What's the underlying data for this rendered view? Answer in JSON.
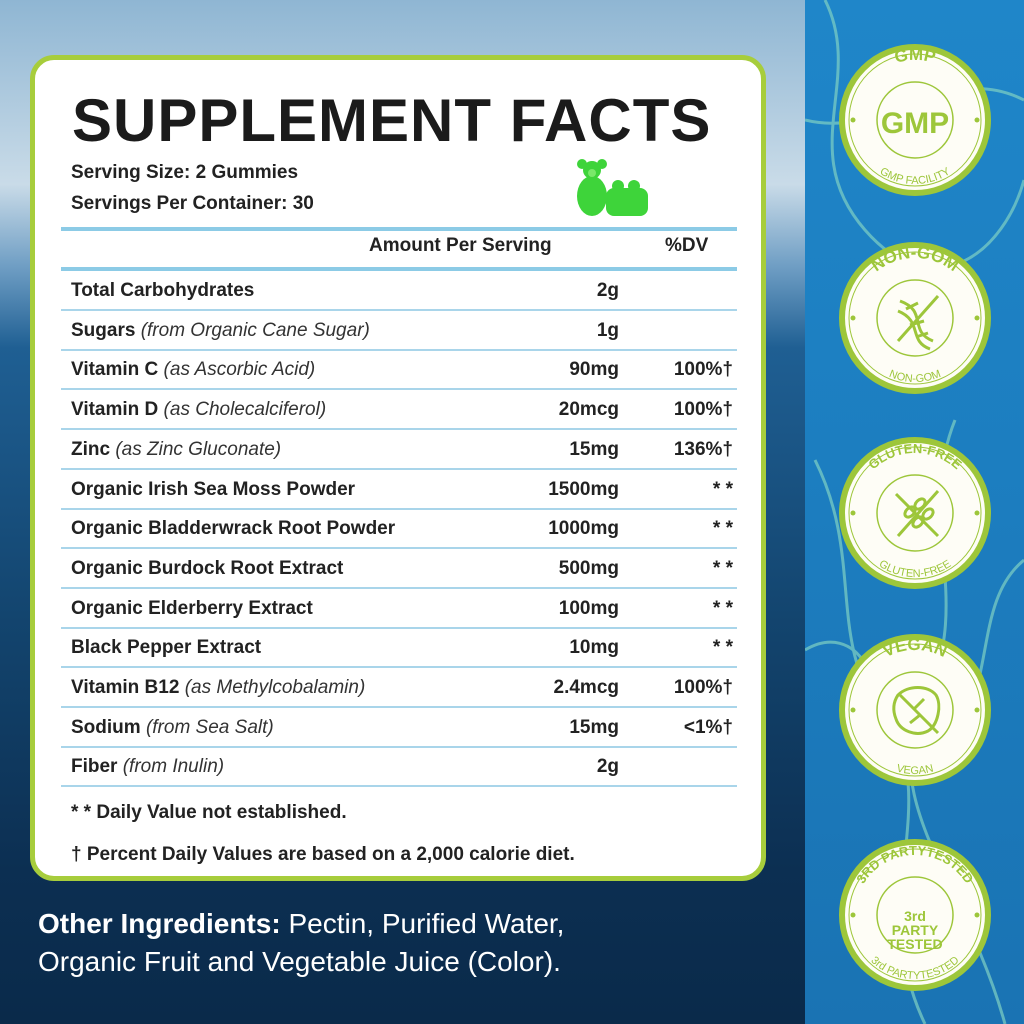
{
  "title": "SUPPLEMENT FACTS",
  "serving_size": "Serving Size: 2 Gummies",
  "servings_per_container": "Servings Per Container: 30",
  "header": {
    "amount": "Amount Per Serving",
    "dv": "%DV"
  },
  "rows": [
    {
      "name": "Total Carbohydrates",
      "note": "",
      "amount": "2g",
      "dv": ""
    },
    {
      "name": "Sugars",
      "note": " (from Organic Cane Sugar)",
      "amount": "1g",
      "dv": ""
    },
    {
      "name": "Vitamin C",
      "note": " (as Ascorbic Acid)",
      "amount": "90mg",
      "dv": "100%†"
    },
    {
      "name": "Vitamin D",
      "note": " (as Cholecalciferol)",
      "amount": "20mcg",
      "dv": "100%†"
    },
    {
      "name": "Zinc",
      "note": " (as Zinc Gluconate)",
      "amount": "15mg",
      "dv": "136%†"
    },
    {
      "name": "Organic Irish Sea Moss Powder",
      "note": "",
      "amount": "1500mg",
      "dv": "* *"
    },
    {
      "name": "Organic Bladderwrack Root Powder",
      "note": "",
      "amount": "1000mg",
      "dv": "* *"
    },
    {
      "name": "Organic Burdock Root Extract",
      "note": "",
      "amount": "500mg",
      "dv": "* *"
    },
    {
      "name": "Organic Elderberry Extract",
      "note": "",
      "amount": "100mg",
      "dv": "* *"
    },
    {
      "name": "Black Pepper Extract",
      "note": "",
      "amount": "10mg",
      "dv": "* *"
    },
    {
      "name": "Vitamin B12",
      "note": " (as Methylcobalamin)",
      "amount": "2.4mcg",
      "dv": "100%†"
    },
    {
      "name": "Sodium",
      "note": " (from Sea Salt)",
      "amount": "15mg",
      "dv": "<1%†"
    },
    {
      "name": "Fiber",
      "note": " (from Inulin)",
      "amount": "2g",
      "dv": ""
    }
  ],
  "footnotes": [
    "* * Daily Value not established.",
    "† Percent Daily Values are based on a 2,000 calorie diet."
  ],
  "other_ingredients": {
    "label": "Other Ingredients:",
    "line1": " Pectin, Purified Water,",
    "line2": "Organic Fruit and Vegetable Juice (Color)."
  },
  "badges": [
    {
      "top": "GMP",
      "center": "GMP",
      "bottom": "GMP FACILITY",
      "icon": "gmp-text"
    },
    {
      "top": "NON-GOM",
      "center": "",
      "bottom": "NON-GOM",
      "icon": "dna-crossed-icon"
    },
    {
      "top": "GLUTEN-FREE",
      "center": "",
      "bottom": "GLUTEN-FREE",
      "icon": "wheat-crossed-icon"
    },
    {
      "top": "VEGAN",
      "center": "",
      "bottom": "VEGAN",
      "icon": "leaf-icon"
    },
    {
      "top": "3RD PARTYTESTED",
      "center": "3rd|PARTY|TESTED",
      "bottom": "3rd PARTYTESTED",
      "icon": "tested-text"
    }
  ],
  "colors": {
    "accent_green": "#a7cd3c",
    "divider_blue": "#a9d5ea",
    "panel_blue": "#1f80c4"
  }
}
